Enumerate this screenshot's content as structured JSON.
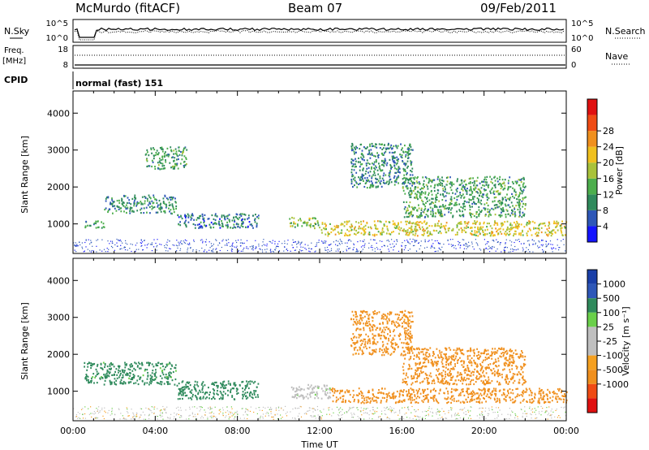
{
  "header": {
    "radar": "McMurdo (fitACF)",
    "beam": "Beam 07",
    "date": "09/Feb/2011"
  },
  "strips": {
    "nsky_label": "N.Sky",
    "nsearch_label": "N.Search",
    "freq_label": "Freq.",
    "freq_unit": "[MHz]",
    "nave_label": "Nave",
    "cpid_label": "CPID",
    "cpid_value": "normal (fast) 151",
    "noise_left_ticks": [
      "10^5",
      "10^0"
    ],
    "noise_right_ticks": [
      "10^5",
      "10^0"
    ],
    "freq_left_ticks": [
      "18",
      "8"
    ],
    "nave_right_ticks": [
      "60",
      "0"
    ]
  },
  "colors": {
    "power": [
      "#1414ff",
      "#2e57b8",
      "#2f8a5c",
      "#4cae4c",
      "#a9c23a",
      "#f0c01e",
      "#f0901e",
      "#f04b14",
      "#e01010"
    ],
    "velocity": [
      "#e01010",
      "#f04b14",
      "#f0901e",
      "#f5a020",
      "#bfbfbf",
      "#bfbfbf",
      "#6ad04a",
      "#2f8a5c",
      "#2e57b8",
      "#1a3fa8"
    ]
  },
  "chart_data": [
    {
      "type": "heatmap",
      "name": "power",
      "ylabel": "Slant Range [km]",
      "ylim": [
        200,
        4600
      ],
      "yticks": [
        "1000",
        "2000",
        "3000",
        "4000"
      ],
      "xlim": [
        0,
        24
      ],
      "colorbar_label": "Power [dB]",
      "colorbar_ticks": [
        "4",
        "8",
        "12",
        "16",
        "20",
        "24",
        "28"
      ],
      "bands": [
        {
          "t0": 0.5,
          "t1": 1.5,
          "r0": 900,
          "r1": 1100,
          "v": 12
        },
        {
          "t0": 1.5,
          "t1": 5.0,
          "r0": 1300,
          "r1": 1800,
          "v": 10
        },
        {
          "t0": 5.0,
          "t1": 9.0,
          "r0": 900,
          "r1": 1300,
          "v": 8
        },
        {
          "t0": 10.5,
          "t1": 12.0,
          "r0": 900,
          "r1": 1200,
          "v": 16
        },
        {
          "t0": 12.0,
          "t1": 24.0,
          "r0": 700,
          "r1": 1100,
          "v": 20
        },
        {
          "t0": 13.5,
          "t1": 16.5,
          "r0": 2000,
          "r1": 3200,
          "v": 10
        },
        {
          "t0": 16.0,
          "t1": 22.0,
          "r0": 1200,
          "r1": 2300,
          "v": 12
        },
        {
          "t0": 3.5,
          "t1": 5.5,
          "r0": 2500,
          "r1": 3100,
          "v": 12
        }
      ]
    },
    {
      "type": "heatmap",
      "name": "velocity",
      "ylabel": "Slant Range [km]",
      "xlabel": "Time UT",
      "ylim": [
        200,
        4600
      ],
      "yticks": [
        "1000",
        "2000",
        "3000",
        "4000"
      ],
      "xlim": [
        0,
        24
      ],
      "xticks": [
        "00:00",
        "04:00",
        "08:00",
        "12:00",
        "16:00",
        "20:00",
        "00:00"
      ],
      "colorbar_label": "Velocity [m s⁻¹]",
      "colorbar_ticks": [
        "1000",
        "500",
        "100",
        "25",
        "-25",
        "-100",
        "-500",
        "-1000"
      ],
      "bands": [
        {
          "t0": 0.5,
          "t1": 5.0,
          "r0": 1200,
          "r1": 1800,
          "v": 100
        },
        {
          "t0": 5.0,
          "t1": 9.0,
          "r0": 800,
          "r1": 1300,
          "v": 150
        },
        {
          "t0": 10.5,
          "t1": 12.5,
          "r0": 800,
          "r1": 1200,
          "v": 10
        },
        {
          "t0": 12.5,
          "t1": 24.0,
          "r0": 700,
          "r1": 1100,
          "v": -150
        },
        {
          "t0": 16.0,
          "t1": 22.0,
          "r0": 1200,
          "r1": 2200,
          "v": -200
        },
        {
          "t0": 13.5,
          "t1": 16.5,
          "r0": 2000,
          "r1": 3200,
          "v": -100
        }
      ]
    }
  ]
}
